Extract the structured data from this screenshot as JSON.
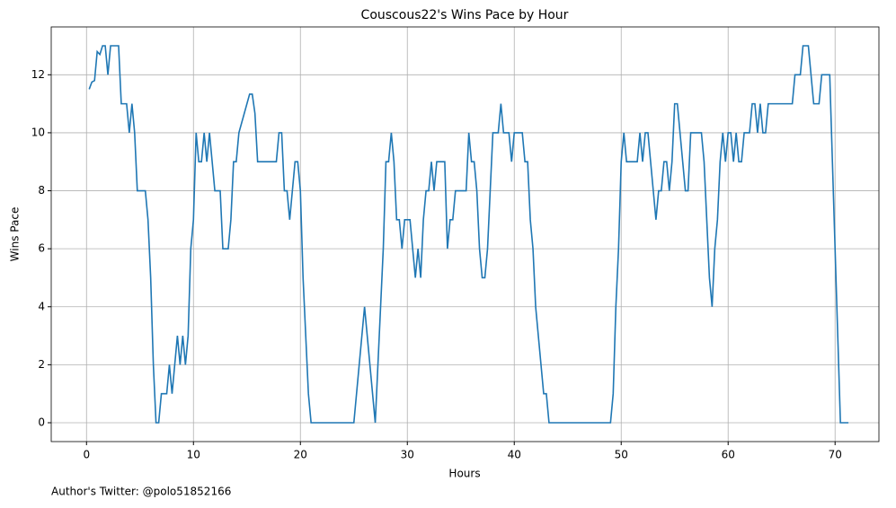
{
  "chart_data": {
    "type": "line",
    "title": "Couscous22's Wins Pace by Hour",
    "xlabel": "Hours",
    "ylabel": "Wins Pace",
    "annotation": "Author's Twitter: @polo51852166",
    "x": [
      0.25,
      0.5,
      0.75,
      1,
      1.25,
      1.5,
      1.75,
      2,
      2.25,
      3,
      3.25,
      3.75,
      4,
      4.25,
      4.5,
      4.75,
      5.5,
      5.75,
      6,
      6.25,
      6.5,
      6.75,
      7,
      7.5,
      7.75,
      8,
      8.25,
      8.5,
      8.75,
      9,
      9.25,
      9.5,
      9.75,
      10,
      10.25,
      10.5,
      10.75,
      11,
      11.25,
      11.5,
      11.75,
      12,
      12.5,
      12.75,
      13.25,
      13.5,
      13.75,
      14,
      14.25,
      15.25,
      15.5,
      15.75,
      16,
      17.75,
      18,
      18.25,
      18.5,
      18.75,
      19,
      19.25,
      19.5,
      19.75,
      20,
      20.25,
      20.75,
      21,
      25,
      26,
      27,
      27.25,
      27.75,
      28,
      28.25,
      28.5,
      28.75,
      29,
      29.25,
      29.5,
      29.75,
      30.25,
      30.5,
      30.75,
      31,
      31.25,
      31.5,
      31.75,
      32,
      32.25,
      32.5,
      32.75,
      33.5,
      33.75,
      34,
      34.25,
      34.5,
      35.5,
      35.75,
      36,
      36.25,
      36.5,
      36.75,
      37,
      37.25,
      37.5,
      37.75,
      38,
      38.5,
      38.75,
      39,
      39.5,
      39.75,
      40,
      40.75,
      41,
      41.25,
      41.5,
      41.75,
      42,
      42.75,
      43,
      43.25,
      49,
      49.25,
      49.5,
      49.75,
      50,
      50.25,
      50.5,
      51.5,
      51.75,
      52,
      52.25,
      52.5,
      52.75,
      53,
      53.25,
      53.5,
      53.75,
      54,
      54.25,
      54.5,
      54.75,
      55,
      55.25,
      55.5,
      55.75,
      56,
      56.25,
      56.5,
      57.5,
      57.75,
      58,
      58.25,
      58.5,
      58.75,
      59,
      59.25,
      59.5,
      59.75,
      60,
      60.25,
      60.5,
      60.75,
      61,
      61.25,
      61.5,
      62,
      62.25,
      62.5,
      62.75,
      63,
      63.25,
      63.5,
      63.75,
      66,
      66.25,
      66.75,
      67,
      67.5,
      67.75,
      68,
      68.5,
      68.75,
      69.5,
      69.75,
      70.5,
      71.25
    ],
    "series": [
      {
        "name": "Wins Pace",
        "color": "#1f77b4",
        "values": [
          11.5,
          11.75,
          11.8,
          12.8,
          12.7,
          13,
          13,
          12,
          13,
          13,
          11,
          11,
          10,
          11,
          10,
          8,
          8,
          7,
          5,
          2,
          0,
          0,
          1,
          1,
          2,
          1,
          2,
          3,
          2,
          3,
          2,
          3,
          6,
          7,
          10,
          9,
          9,
          10,
          9,
          10,
          9,
          8,
          8,
          6,
          6,
          7,
          9,
          9,
          10,
          11.33,
          11.33,
          10.67,
          9,
          9,
          10,
          10,
          8,
          8,
          7,
          8,
          9,
          9,
          8,
          5,
          1,
          0,
          0,
          4,
          0,
          2,
          6,
          9,
          9,
          10,
          9,
          7,
          7,
          6,
          7,
          7,
          6,
          5,
          6,
          5,
          7,
          8,
          8,
          9,
          8,
          9,
          9,
          6,
          7,
          7,
          8,
          8,
          10,
          9,
          9,
          8,
          6,
          5,
          5,
          6,
          8,
          10,
          10,
          11,
          10,
          10,
          9,
          10,
          10,
          9,
          9,
          7,
          6,
          4,
          1,
          1,
          0,
          0,
          1,
          4,
          6,
          9,
          10,
          9,
          9,
          10,
          9,
          10,
          10,
          9,
          8,
          7,
          8,
          8,
          9,
          9,
          8,
          9,
          11,
          11,
          10,
          9,
          8,
          8,
          10,
          10,
          9,
          7,
          5,
          4,
          6,
          7,
          9,
          10,
          9,
          10,
          10,
          9,
          10,
          9,
          9,
          10,
          10,
          11,
          11,
          10,
          11,
          10,
          10,
          11,
          11,
          12,
          12,
          13,
          13,
          12,
          11,
          11,
          12,
          12,
          9,
          0,
          0
        ]
      }
    ],
    "xlim": [
      -3.3,
      74.1
    ],
    "ylim": [
      -0.65,
      13.65
    ],
    "xticks": [
      0,
      10,
      20,
      30,
      40,
      50,
      60,
      70
    ],
    "yticks": [
      0,
      2,
      4,
      6,
      8,
      10,
      12
    ],
    "grid": true
  }
}
